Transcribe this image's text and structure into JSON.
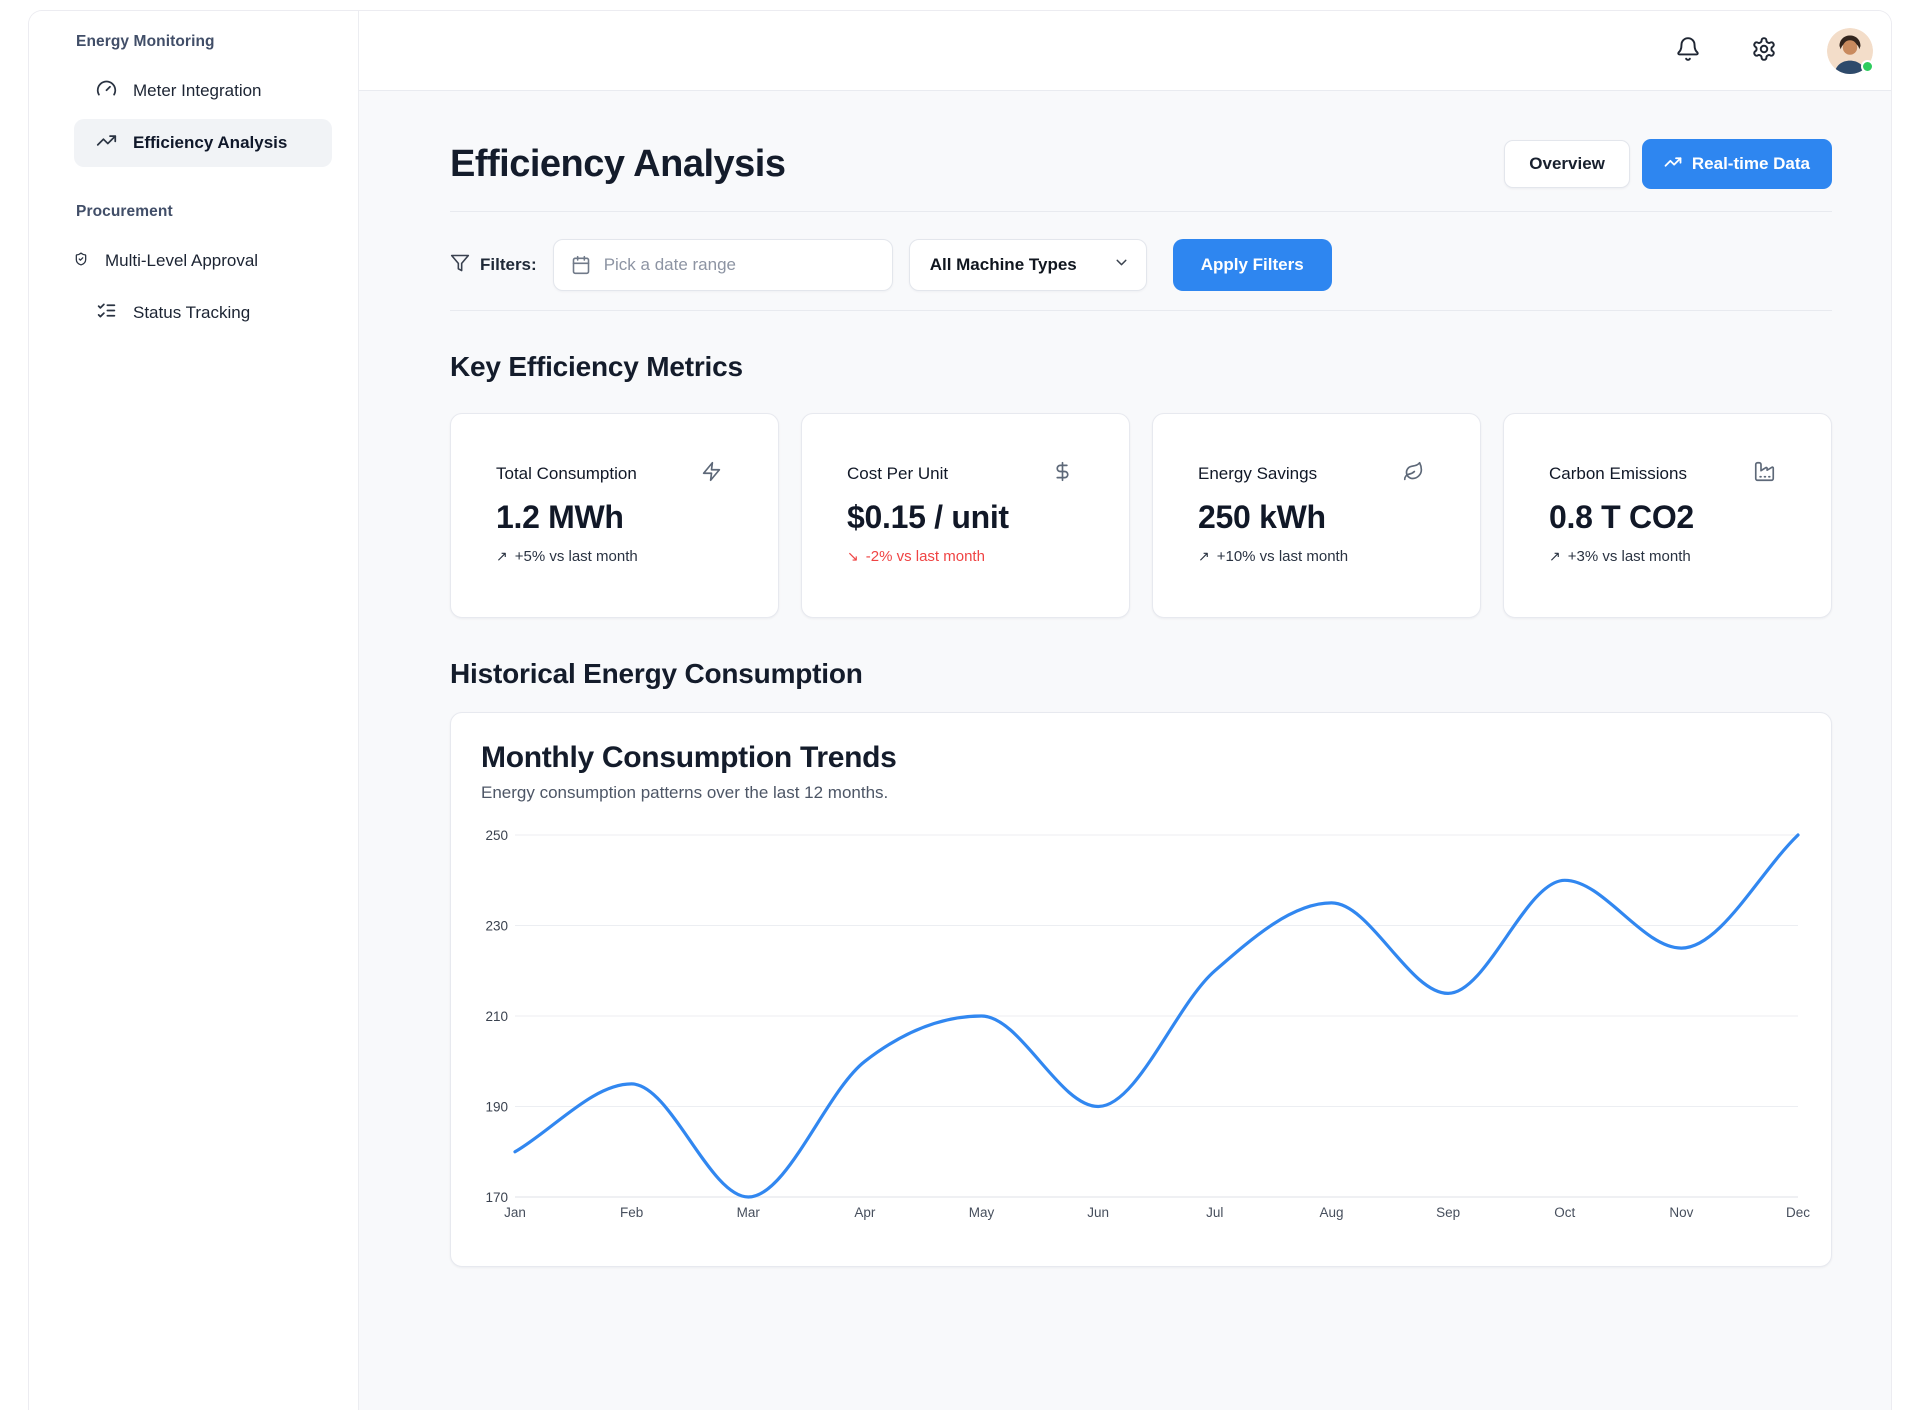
{
  "app": {
    "accent_blue": "#2e86f0",
    "negative_red": "#ef4444",
    "online_green": "#2ecc5e"
  },
  "sidebar": {
    "sections": [
      {
        "label": "Energy Monitoring",
        "items": [
          {
            "label": "Meter Integration",
            "icon": "gauge-icon"
          },
          {
            "label": "Efficiency Analysis",
            "icon": "trending-up-icon",
            "active": true
          }
        ]
      },
      {
        "label": "Procurement",
        "items": [
          {
            "label": "Multi-Level Approval",
            "icon": "shield-check-icon"
          },
          {
            "label": "Status Tracking",
            "icon": "list-checks-icon"
          }
        ]
      }
    ]
  },
  "header": {
    "icons": [
      "bell-icon",
      "settings-icon"
    ],
    "user": {
      "status": "online"
    }
  },
  "page": {
    "title": "Efficiency Analysis",
    "actions": {
      "overview_label": "Overview",
      "realtime_label": "Real-time Data"
    }
  },
  "filters": {
    "label": "Filters:",
    "date_placeholder": "Pick a date range",
    "machine_type_value": "All Machine Types",
    "apply_label": "Apply Filters"
  },
  "metrics": {
    "heading": "Key Efficiency Metrics",
    "cards": [
      {
        "label": "Total Consumption",
        "icon": "zap-icon",
        "value": "1.2 MWh",
        "arrow": "↗",
        "delta": "+5% vs last month",
        "trend": "up"
      },
      {
        "label": "Cost Per Unit",
        "icon": "dollar-sign-icon",
        "value": "$0.15 / unit",
        "arrow": "↘",
        "delta": "-2% vs last month",
        "trend": "down"
      },
      {
        "label": "Energy Savings",
        "icon": "leaf-icon",
        "value": "250 kWh",
        "arrow": "↗",
        "delta": "+10% vs last month",
        "trend": "up"
      },
      {
        "label": "Carbon Emissions",
        "icon": "factory-icon",
        "value": "0.8 T CO2",
        "arrow": "↗",
        "delta": "+3% vs last month",
        "trend": "up"
      }
    ]
  },
  "history": {
    "heading": "Historical Energy Consumption",
    "card_title": "Monthly Consumption Trends",
    "card_subtitle": "Energy consumption patterns over the last 12 months."
  },
  "chart_data": {
    "type": "line",
    "x": [
      "Jan",
      "Feb",
      "Mar",
      "Apr",
      "May",
      "Jun",
      "Jul",
      "Aug",
      "Sep",
      "Oct",
      "Nov",
      "Dec"
    ],
    "series": [
      {
        "name": "Monthly consumption",
        "values": [
          180,
          195,
          170,
          200,
          210,
          190,
          220,
          235,
          215,
          240,
          225,
          250
        ]
      }
    ],
    "ylim": [
      170,
      250
    ],
    "yticks": [
      170,
      190,
      210,
      230,
      250
    ],
    "grid": true,
    "legend": "none",
    "curve": "monotone",
    "line_color": "#3187f0"
  }
}
